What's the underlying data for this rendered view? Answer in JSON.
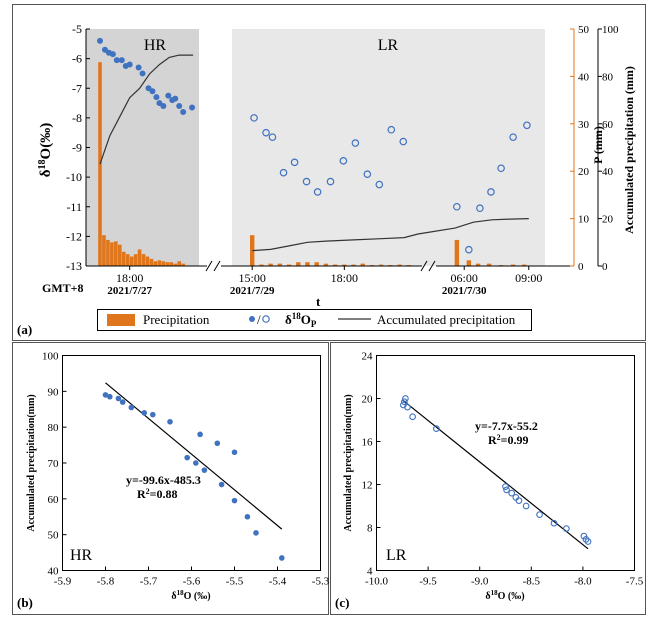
{
  "colors": {
    "precipitation": "#e0761c",
    "isotope": "#3f72c0",
    "accumulated": "#333333",
    "shade_hr": "#d4d4d4",
    "shade_lr": "#e8e8e8",
    "axis": "#000000",
    "grid_frame": "#333333"
  },
  "chart_data": [
    {
      "id": "a",
      "type": "combo",
      "panel_label": "(a)",
      "xlabel": "t",
      "timezone_label": "GMT+8",
      "ylabel_left": "δ18O(‰)",
      "ylabel_left_base": "δ",
      "ylabel_left_sup": "18",
      "ylabel_left_rest": "O(‰)",
      "ylabel_right1": "P (mm)",
      "ylabel_right2": "Accumulated precipitation (mm)",
      "region_labels": [
        "HR",
        "LR"
      ],
      "ylim_left": [
        -13,
        -5
      ],
      "yticks_left": [
        "-5",
        "-6",
        "-7",
        "-8",
        "-9",
        "-10",
        "-11",
        "-12",
        "-13"
      ],
      "ylim_right1": [
        0,
        50
      ],
      "yticks_right1": [
        "50",
        "40",
        "30",
        "20",
        "10",
        "0"
      ],
      "ylim_right2": [
        0,
        100
      ],
      "yticks_right2": [
        "100",
        "80",
        "60",
        "40",
        "20",
        "0"
      ],
      "x_ticks": [
        {
          "label": "18:00",
          "date": "2021/7/27",
          "t": 3
        },
        {
          "label": "15:00",
          "date": "2021/7/29",
          "t": 13
        },
        {
          "label": "18:00",
          "date": "",
          "t": 23
        },
        {
          "label": "06:00",
          "date": "2021/7/30",
          "t": 34
        },
        {
          "label": "09:00",
          "date": "",
          "t": 41
        }
      ],
      "x_segments": [
        [
          0,
          10
        ],
        [
          12,
          31
        ],
        [
          33,
          42
        ]
      ],
      "hr_isotope": [
        {
          "t": 0.0,
          "v": -5.4
        },
        {
          "t": 0.5,
          "v": -5.7
        },
        {
          "t": 0.9,
          "v": -5.8
        },
        {
          "t": 1.3,
          "v": -5.85
        },
        {
          "t": 1.7,
          "v": -6.05
        },
        {
          "t": 2.2,
          "v": -6.05
        },
        {
          "t": 2.6,
          "v": -6.25
        },
        {
          "t": 3.0,
          "v": -6.2
        },
        {
          "t": 3.9,
          "v": -6.3
        },
        {
          "t": 4.3,
          "v": -6.5
        },
        {
          "t": 4.9,
          "v": -7.0
        },
        {
          "t": 5.3,
          "v": -7.1
        },
        {
          "t": 5.7,
          "v": -7.3
        },
        {
          "t": 6.0,
          "v": -7.5
        },
        {
          "t": 6.4,
          "v": -7.6
        },
        {
          "t": 6.9,
          "v": -7.25
        },
        {
          "t": 7.3,
          "v": -7.4
        },
        {
          "t": 7.6,
          "v": -7.35
        },
        {
          "t": 8.0,
          "v": -7.6
        },
        {
          "t": 8.4,
          "v": -7.8
        },
        {
          "t": 9.3,
          "v": -7.65
        }
      ],
      "lr_isotope": [
        {
          "t": 13.2,
          "v": -8.0
        },
        {
          "t": 14.5,
          "v": -8.5
        },
        {
          "t": 15.2,
          "v": -8.65
        },
        {
          "t": 16.4,
          "v": -9.85
        },
        {
          "t": 17.6,
          "v": -9.5
        },
        {
          "t": 18.9,
          "v": -10.15
        },
        {
          "t": 20.1,
          "v": -10.5
        },
        {
          "t": 21.5,
          "v": -10.15
        },
        {
          "t": 22.9,
          "v": -9.45
        },
        {
          "t": 24.2,
          "v": -8.85
        },
        {
          "t": 25.5,
          "v": -9.9
        },
        {
          "t": 26.8,
          "v": -10.25
        },
        {
          "t": 28.1,
          "v": -8.4
        },
        {
          "t": 29.4,
          "v": -8.8
        },
        {
          "t": 33.2,
          "v": -11.0
        },
        {
          "t": 34.5,
          "v": -12.45
        },
        {
          "t": 35.7,
          "v": -11.05
        },
        {
          "t": 36.9,
          "v": -10.5
        },
        {
          "t": 38.0,
          "v": -9.7
        },
        {
          "t": 39.3,
          "v": -8.65
        },
        {
          "t": 40.8,
          "v": -8.25
        }
      ],
      "precipitation": [
        {
          "t": 0.0,
          "v": 43
        },
        {
          "t": 0.4,
          "v": 6.5
        },
        {
          "t": 0.8,
          "v": 5.5
        },
        {
          "t": 1.2,
          "v": 5
        },
        {
          "t": 1.6,
          "v": 5.2
        },
        {
          "t": 2.0,
          "v": 4.5
        },
        {
          "t": 2.4,
          "v": 3
        },
        {
          "t": 2.8,
          "v": 2.5
        },
        {
          "t": 3.2,
          "v": 2
        },
        {
          "t": 3.6,
          "v": 2.5
        },
        {
          "t": 4.0,
          "v": 3.5
        },
        {
          "t": 4.4,
          "v": 2.5
        },
        {
          "t": 4.8,
          "v": 2
        },
        {
          "t": 5.2,
          "v": 1.5
        },
        {
          "t": 5.6,
          "v": 1
        },
        {
          "t": 6.0,
          "v": 1.2
        },
        {
          "t": 6.4,
          "v": 1
        },
        {
          "t": 6.8,
          "v": 0.8
        },
        {
          "t": 7.2,
          "v": 0.8
        },
        {
          "t": 7.6,
          "v": 0.5
        },
        {
          "t": 8.0,
          "v": 1
        },
        {
          "t": 8.4,
          "v": 0.5
        },
        {
          "t": 13.0,
          "v": 6.5
        },
        {
          "t": 14.0,
          "v": 0.3
        },
        {
          "t": 15.0,
          "v": 0.5
        },
        {
          "t": 16.0,
          "v": 0.5
        },
        {
          "t": 17.0,
          "v": 0.3
        },
        {
          "t": 18.0,
          "v": 0.8
        },
        {
          "t": 19.0,
          "v": 0.8
        },
        {
          "t": 20.0,
          "v": 0.8
        },
        {
          "t": 21.0,
          "v": 0.5
        },
        {
          "t": 22.0,
          "v": 0.3
        },
        {
          "t": 23.0,
          "v": 0.3
        },
        {
          "t": 24.0,
          "v": 0.3
        },
        {
          "t": 25.0,
          "v": 0.5
        },
        {
          "t": 26.0,
          "v": 0.2
        },
        {
          "t": 27.0,
          "v": 0.3
        },
        {
          "t": 28.0,
          "v": 0.2
        },
        {
          "t": 29.0,
          "v": 0.3
        },
        {
          "t": 30.0,
          "v": 0.2
        },
        {
          "t": 33.2,
          "v": 5.5
        },
        {
          "t": 34.5,
          "v": 1.2
        },
        {
          "t": 35.5,
          "v": 0.5
        },
        {
          "t": 36.7,
          "v": 0.5
        },
        {
          "t": 38.0,
          "v": 0.2
        },
        {
          "t": 39.3,
          "v": 0.3
        },
        {
          "t": 40.5,
          "v": 0.3
        }
      ],
      "accumulated_hr": [
        {
          "t": 0.0,
          "v": 43
        },
        {
          "t": 1.0,
          "v": 55
        },
        {
          "t": 2.0,
          "v": 63
        },
        {
          "t": 3.0,
          "v": 71
        },
        {
          "t": 4.0,
          "v": 75
        },
        {
          "t": 5.0,
          "v": 81
        },
        {
          "t": 6.0,
          "v": 85
        },
        {
          "t": 7.0,
          "v": 88
        },
        {
          "t": 8.0,
          "v": 89
        },
        {
          "t": 9.0,
          "v": 89
        },
        {
          "t": 9.4,
          "v": 89
        }
      ],
      "accumulated_lr": [
        {
          "t": 13.0,
          "v": 6.5
        },
        {
          "t": 15.0,
          "v": 7
        },
        {
          "t": 17.0,
          "v": 8.5
        },
        {
          "t": 19.0,
          "v": 10
        },
        {
          "t": 21.0,
          "v": 10.5
        },
        {
          "t": 24.0,
          "v": 11
        },
        {
          "t": 27.0,
          "v": 11.5
        },
        {
          "t": 29.5,
          "v": 12
        },
        {
          "t": 31.0,
          "v": 13.5
        },
        {
          "t": 33.0,
          "v": 16
        },
        {
          "t": 35.0,
          "v": 18.5
        },
        {
          "t": 37.0,
          "v": 19.5
        },
        {
          "t": 39.0,
          "v": 19.8
        },
        {
          "t": 41.0,
          "v": 20
        }
      ],
      "legend": {
        "precipitation": "Precipitation",
        "isotope_base": "δ",
        "isotope_sup": "18",
        "isotope_mid": "O",
        "isotope_sub": "P",
        "accumulated": "Accumulated precipitation"
      }
    },
    {
      "id": "b",
      "type": "scatter",
      "panel_label": "(b)",
      "region_label": "HR",
      "xlabel": "δ18O (‰)",
      "xlabel_base": "δ",
      "xlabel_sup": "18",
      "xlabel_rest": "O (‰)",
      "ylabel": "Accumulated precipitation(mm)",
      "xlim": [
        -5.9,
        -5.3
      ],
      "xticks": [
        "-5.9",
        "-5.8",
        "-5.7",
        "-5.6",
        "-5.5",
        "-5.4",
        "-5.3"
      ],
      "ylim": [
        40,
        100
      ],
      "yticks": [
        "40",
        "50",
        "60",
        "70",
        "80",
        "90",
        "100"
      ],
      "points": [
        {
          "x": -5.8,
          "y": 89
        },
        {
          "x": -5.79,
          "y": 88.5
        },
        {
          "x": -5.77,
          "y": 88
        },
        {
          "x": -5.76,
          "y": 87
        },
        {
          "x": -5.74,
          "y": 85.5
        },
        {
          "x": -5.71,
          "y": 84
        },
        {
          "x": -5.69,
          "y": 83.5
        },
        {
          "x": -5.65,
          "y": 81.5
        },
        {
          "x": -5.61,
          "y": 71.5
        },
        {
          "x": -5.59,
          "y": 70
        },
        {
          "x": -5.58,
          "y": 78
        },
        {
          "x": -5.57,
          "y": 68
        },
        {
          "x": -5.54,
          "y": 75.5
        },
        {
          "x": -5.53,
          "y": 64
        },
        {
          "x": -5.5,
          "y": 73
        },
        {
          "x": -5.5,
          "y": 59.5
        },
        {
          "x": -5.47,
          "y": 55
        },
        {
          "x": -5.45,
          "y": 50.5
        },
        {
          "x": -5.39,
          "y": 43.5
        }
      ],
      "fit": {
        "slope": -99.6,
        "intercept": -485.3,
        "x_range": [
          -5.8,
          -5.39
        ]
      },
      "equation": "y=-99.6x-485.3",
      "r2_base": "R",
      "r2_sup": "2",
      "r2_value": "=0.88"
    },
    {
      "id": "c",
      "type": "scatter",
      "panel_label": "(c)",
      "region_label": "LR",
      "xlabel": "δ18O (‰)",
      "xlabel_base": "δ",
      "xlabel_sup": "18",
      "xlabel_rest": "O (‰)",
      "ylabel": "Accumulated precipitation(mm)",
      "xlim": [
        -10.0,
        -7.5
      ],
      "xticks": [
        "-10.0",
        "-9.5",
        "-9.0",
        "-8.5",
        "-8.0",
        "-7.5"
      ],
      "ylim": [
        4,
        24
      ],
      "yticks": [
        "4",
        "8",
        "12",
        "16",
        "20",
        "24"
      ],
      "points": [
        {
          "x": -9.72,
          "y": 20
        },
        {
          "x": -9.73,
          "y": 19.7
        },
        {
          "x": -9.7,
          "y": 19.2
        },
        {
          "x": -9.74,
          "y": 19.4
        },
        {
          "x": -9.65,
          "y": 18.3
        },
        {
          "x": -9.42,
          "y": 17.2
        },
        {
          "x": -8.75,
          "y": 11.8
        },
        {
          "x": -8.74,
          "y": 11.5
        },
        {
          "x": -8.69,
          "y": 11.2
        },
        {
          "x": -8.65,
          "y": 10.8
        },
        {
          "x": -8.62,
          "y": 10.5
        },
        {
          "x": -8.55,
          "y": 10.0
        },
        {
          "x": -8.42,
          "y": 9.2
        },
        {
          "x": -8.28,
          "y": 8.4
        },
        {
          "x": -8.16,
          "y": 7.9
        },
        {
          "x": -7.99,
          "y": 7.2
        },
        {
          "x": -7.97,
          "y": 6.9
        },
        {
          "x": -7.95,
          "y": 6.7
        }
      ],
      "fit": {
        "slope": -7.7,
        "intercept": -55.2,
        "x_range": [
          -9.75,
          -7.95
        ]
      },
      "equation": "y=-7.7x-55.2",
      "r2_base": "R",
      "r2_sup": "2",
      "r2_value": "=0.99"
    }
  ]
}
